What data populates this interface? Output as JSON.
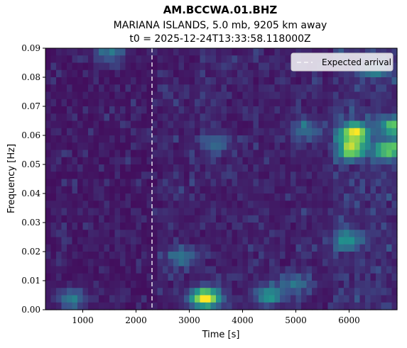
{
  "chart_data": {
    "type": "heatmap",
    "title": "AM.BCCWA.01.BHZ",
    "subtitle_lines": [
      "MARIANA ISLANDS, 5.0 mb, 9205 km away",
      "t0 = 2025-12-24T13:33:58.118000Z"
    ],
    "xlabel": "Time [s]",
    "ylabel": "Frequency [Hz]",
    "xlim": [
      300,
      6900
    ],
    "ylim": [
      0.0,
      0.09
    ],
    "xticks": [
      1000,
      2000,
      3000,
      4000,
      5000,
      6000
    ],
    "xtick_labels": [
      "1000",
      "2000",
      "3000",
      "4000",
      "5000",
      "6000"
    ],
    "yticks": [
      0.0,
      0.01,
      0.02,
      0.03,
      0.04,
      0.05,
      0.06,
      0.07,
      0.08,
      0.09
    ],
    "ytick_labels": [
      "0.00",
      "0.01",
      "0.02",
      "0.03",
      "0.04",
      "0.05",
      "0.06",
      "0.07",
      "0.08",
      "0.09"
    ],
    "colormap": "viridis",
    "grid": false,
    "legend": {
      "position": "top-right",
      "entries": [
        "Expected arrival"
      ]
    },
    "expected_arrival_time": 2300,
    "hotspots": [
      {
        "t": 3300,
        "f": 0.004,
        "intensity": 1.0
      },
      {
        "t": 6100,
        "f": 0.061,
        "intensity": 0.9
      },
      {
        "t": 6050,
        "f": 0.055,
        "intensity": 0.75
      },
      {
        "t": 6750,
        "f": 0.055,
        "intensity": 0.7
      },
      {
        "t": 6850,
        "f": 0.063,
        "intensity": 0.6
      },
      {
        "t": 4500,
        "f": 0.005,
        "intensity": 0.45
      },
      {
        "t": 5950,
        "f": 0.024,
        "intensity": 0.4
      },
      {
        "t": 2850,
        "f": 0.018,
        "intensity": 0.3
      },
      {
        "t": 3500,
        "f": 0.057,
        "intensity": 0.28
      },
      {
        "t": 5200,
        "f": 0.062,
        "intensity": 0.3
      },
      {
        "t": 1500,
        "f": 0.088,
        "intensity": 0.3
      },
      {
        "t": 6500,
        "f": 0.083,
        "intensity": 0.35
      },
      {
        "t": 800,
        "f": 0.004,
        "intensity": 0.35
      },
      {
        "t": 5000,
        "f": 0.009,
        "intensity": 0.3
      }
    ],
    "colors": {
      "background": "#440154",
      "arrival_line": "#ffffff",
      "legend_bg": "#e8e6ee"
    }
  }
}
